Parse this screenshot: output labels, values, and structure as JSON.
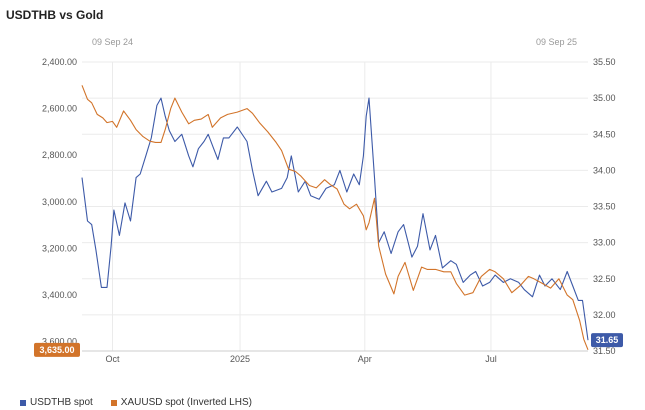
{
  "title": "USDTHB vs Gold",
  "range": {
    "start": "09 Sep 24",
    "end": "09 Sep 25"
  },
  "colors": {
    "usdthb": "#3d5aa8",
    "xauusd": "#d2742a",
    "grid": "#ebebeb"
  },
  "chart_data": {
    "type": "line",
    "title": "USDTHB vs Gold",
    "x_ticks": [
      "Oct",
      "2025",
      "Apr",
      "Jul"
    ],
    "left_axis": {
      "label": "",
      "inverted": true,
      "ticks": [
        "2,400.00",
        "2,600.00",
        "2,800.00",
        "3,000.00",
        "3,200.00",
        "3,400.00",
        "3,600.00"
      ],
      "range": [
        2400,
        3640
      ]
    },
    "right_axis": {
      "label": "",
      "ticks": [
        "35.50",
        "35.00",
        "34.50",
        "34.00",
        "33.50",
        "33.00",
        "32.50",
        "32.00",
        "31.50"
      ],
      "range": [
        31.5,
        35.5
      ]
    },
    "last_values": {
      "left": "3,635.00",
      "right": "31.65"
    },
    "grid": true,
    "legend_position": "bottom-left",
    "series": [
      {
        "name": "USDTHB spot",
        "axis": "right",
        "x": [
          "2024-09-09",
          "2024-09-13",
          "2024-09-16",
          "2024-09-19",
          "2024-09-23",
          "2024-09-27",
          "2024-09-30",
          "2024-10-02",
          "2024-10-06",
          "2024-10-10",
          "2024-10-14",
          "2024-10-18",
          "2024-10-21",
          "2024-10-25",
          "2024-10-29",
          "2024-11-02",
          "2024-11-05",
          "2024-11-08",
          "2024-11-11",
          "2024-11-15",
          "2024-11-20",
          "2024-11-25",
          "2024-11-28",
          "2024-12-02",
          "2024-12-06",
          "2024-12-09",
          "2024-12-13",
          "2024-12-16",
          "2024-12-20",
          "2024-12-24",
          "2024-12-30",
          "2025-01-06",
          "2025-01-10",
          "2025-01-14",
          "2025-01-20",
          "2025-01-24",
          "2025-01-31",
          "2025-02-04",
          "2025-02-07",
          "2025-02-12",
          "2025-02-17",
          "2025-02-21",
          "2025-02-27",
          "2025-03-04",
          "2025-03-10",
          "2025-03-14",
          "2025-03-19",
          "2025-03-24",
          "2025-03-28",
          "2025-03-31",
          "2025-04-02",
          "2025-04-04",
          "2025-04-08",
          "2025-04-11",
          "2025-04-15",
          "2025-04-20",
          "2025-04-25",
          "2025-04-29",
          "2025-05-05",
          "2025-05-09",
          "2025-05-13",
          "2025-05-18",
          "2025-05-22",
          "2025-05-27",
          "2025-06-02",
          "2025-06-06",
          "2025-06-11",
          "2025-06-16",
          "2025-06-20",
          "2025-06-25",
          "2025-06-30",
          "2025-07-04",
          "2025-07-10",
          "2025-07-15",
          "2025-07-21",
          "2025-07-25",
          "2025-07-31",
          "2025-08-05",
          "2025-08-09",
          "2025-08-14",
          "2025-08-20",
          "2025-08-25",
          "2025-08-29",
          "2025-09-02",
          "2025-09-05",
          "2025-09-09"
        ],
        "values": [
          33.9,
          33.3,
          33.25,
          32.9,
          32.38,
          32.38,
          32.95,
          33.45,
          33.1,
          33.55,
          33.3,
          33.9,
          33.95,
          34.2,
          34.45,
          34.9,
          35.0,
          34.75,
          34.55,
          34.4,
          34.5,
          34.2,
          34.05,
          34.3,
          34.4,
          34.5,
          34.3,
          34.15,
          34.45,
          34.45,
          34.6,
          34.4,
          34.0,
          33.65,
          33.85,
          33.7,
          33.75,
          33.9,
          34.2,
          33.7,
          33.85,
          33.65,
          33.6,
          33.75,
          33.8,
          34.0,
          33.7,
          33.95,
          33.8,
          34.2,
          34.75,
          35.0,
          33.9,
          33.0,
          33.15,
          32.85,
          33.15,
          33.25,
          32.8,
          32.95,
          33.4,
          32.9,
          33.1,
          32.65,
          32.75,
          32.7,
          32.45,
          32.55,
          32.6,
          32.4,
          32.45,
          32.55,
          32.45,
          32.5,
          32.45,
          32.35,
          32.25,
          32.55,
          32.4,
          32.5,
          32.35,
          32.6,
          32.4,
          32.2,
          32.2,
          31.65
        ]
      },
      {
        "name": "XAUUSD spot (Inverted LHS)",
        "axis": "left",
        "x": [
          "2024-09-09",
          "2024-09-13",
          "2024-09-16",
          "2024-09-20",
          "2024-09-24",
          "2024-09-27",
          "2024-10-01",
          "2024-10-04",
          "2024-10-09",
          "2024-10-14",
          "2024-10-18",
          "2024-10-23",
          "2024-10-28",
          "2024-11-01",
          "2024-11-05",
          "2024-11-08",
          "2024-11-12",
          "2024-11-15",
          "2024-11-20",
          "2024-11-25",
          "2024-11-29",
          "2024-12-04",
          "2024-12-09",
          "2024-12-12",
          "2024-12-18",
          "2024-12-23",
          "2024-12-30",
          "2025-01-06",
          "2025-01-10",
          "2025-01-15",
          "2025-01-21",
          "2025-01-27",
          "2025-01-31",
          "2025-02-05",
          "2025-02-10",
          "2025-02-14",
          "2025-02-20",
          "2025-02-25",
          "2025-03-03",
          "2025-03-07",
          "2025-03-12",
          "2025-03-17",
          "2025-03-21",
          "2025-03-26",
          "2025-03-31",
          "2025-04-02",
          "2025-04-04",
          "2025-04-08",
          "2025-04-11",
          "2025-04-16",
          "2025-04-22",
          "2025-04-25",
          "2025-04-30",
          "2025-05-06",
          "2025-05-12",
          "2025-05-16",
          "2025-05-22",
          "2025-05-28",
          "2025-06-02",
          "2025-06-06",
          "2025-06-12",
          "2025-06-18",
          "2025-06-24",
          "2025-06-30",
          "2025-07-04",
          "2025-07-10",
          "2025-07-16",
          "2025-07-22",
          "2025-07-28",
          "2025-08-01",
          "2025-08-07",
          "2025-08-13",
          "2025-08-19",
          "2025-08-25",
          "2025-08-29",
          "2025-09-03",
          "2025-09-06",
          "2025-09-09"
        ],
        "values": [
          2500,
          2560,
          2575,
          2625,
          2640,
          2660,
          2655,
          2680,
          2610,
          2650,
          2690,
          2720,
          2740,
          2745,
          2745,
          2690,
          2600,
          2555,
          2615,
          2665,
          2650,
          2645,
          2625,
          2680,
          2640,
          2625,
          2615,
          2600,
          2620,
          2660,
          2700,
          2745,
          2780,
          2860,
          2870,
          2890,
          2930,
          2940,
          2905,
          2925,
          2945,
          3010,
          3030,
          3010,
          3060,
          3120,
          3090,
          2985,
          3190,
          3310,
          3395,
          3320,
          3260,
          3380,
          3280,
          3290,
          3290,
          3300,
          3300,
          3350,
          3400,
          3390,
          3320,
          3290,
          3300,
          3330,
          3390,
          3360,
          3320,
          3330,
          3350,
          3370,
          3330,
          3400,
          3420,
          3510,
          3590,
          3635
        ]
      }
    ]
  },
  "legend": {
    "usdthb_label": "USDTHB spot",
    "xauusd_label": "XAUUSD spot (Inverted LHS)"
  }
}
